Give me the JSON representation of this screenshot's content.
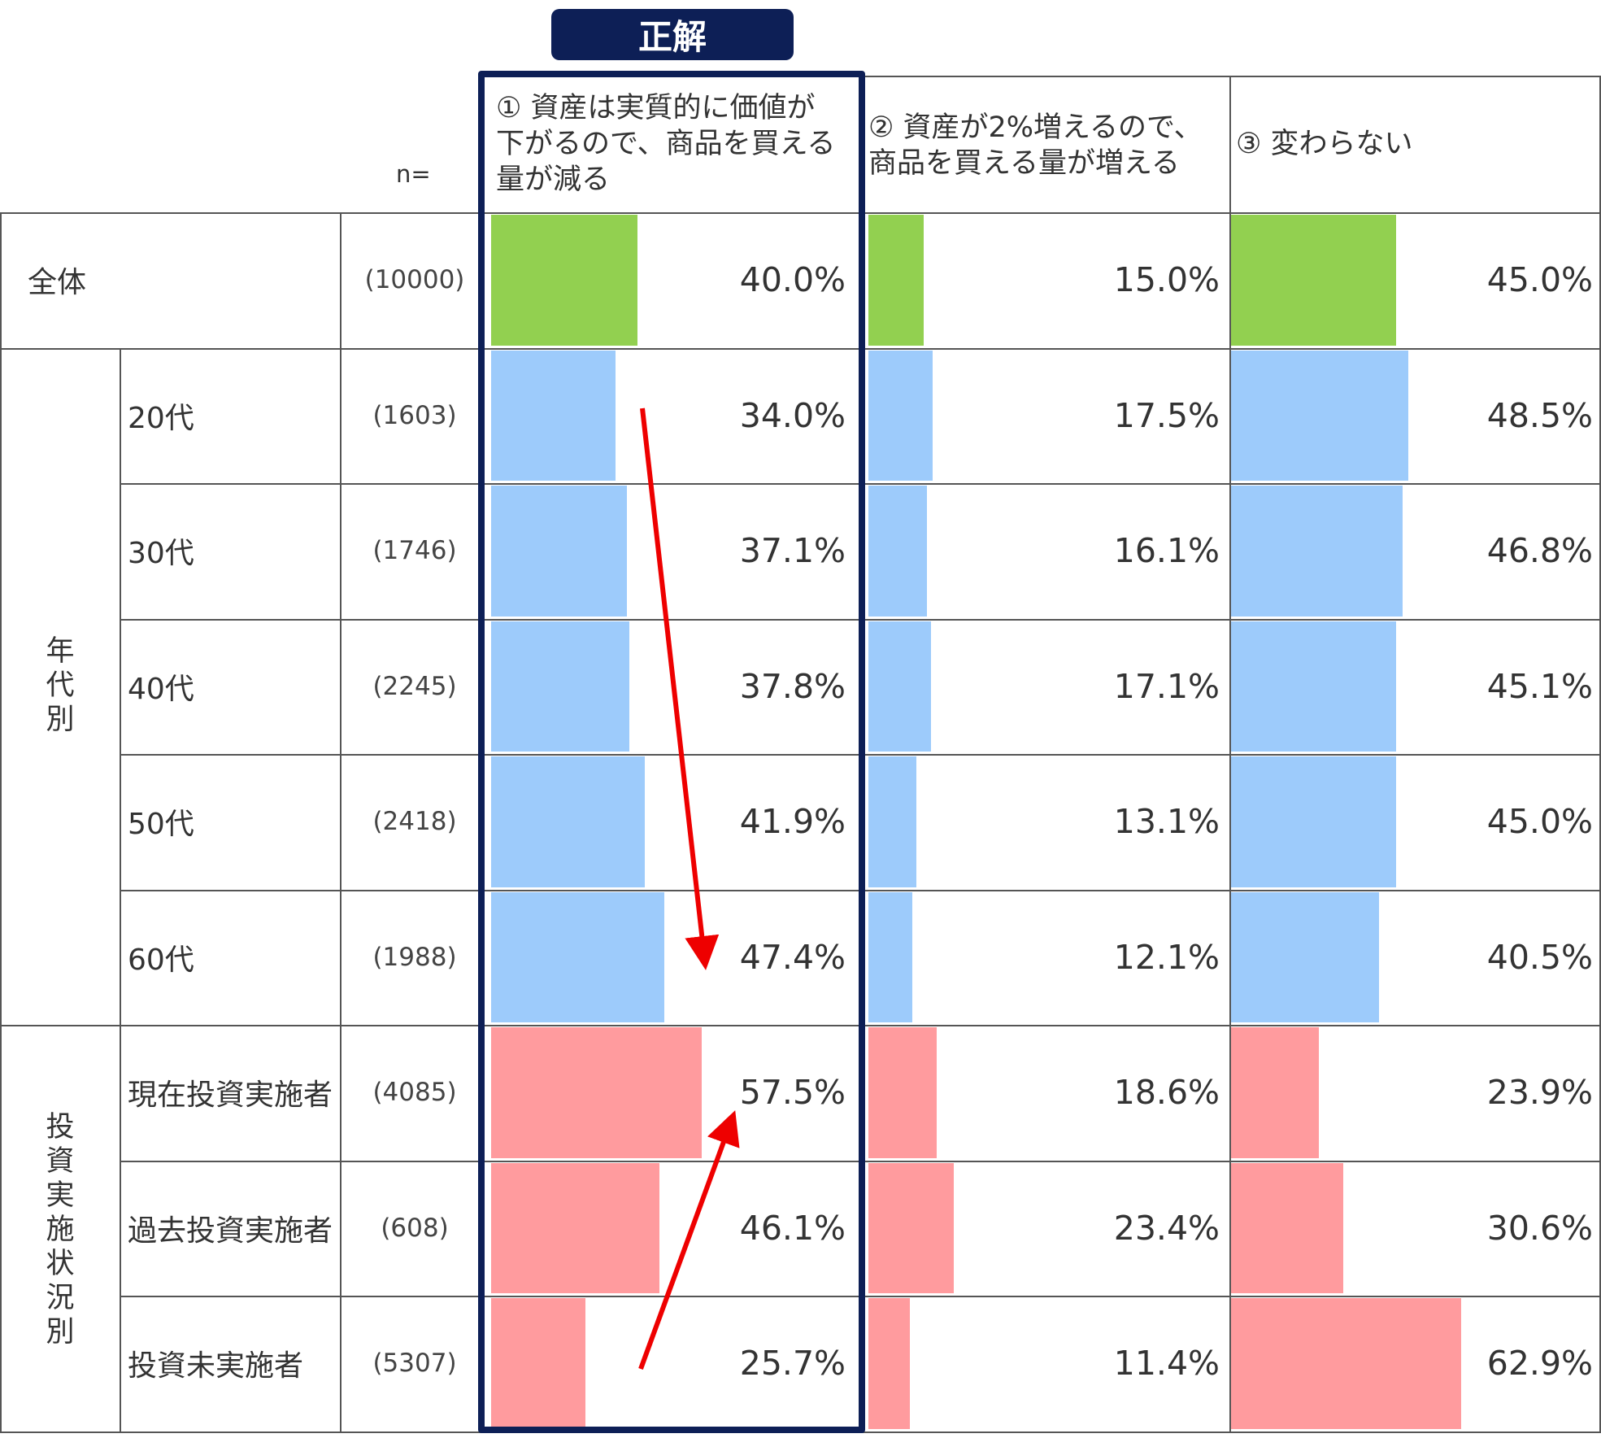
{
  "badge": "正解",
  "n_header": "n=",
  "columns": [
    {
      "label": "① 資産は実質的に価値が\n下がるので、商品を買える\n量が減る"
    },
    {
      "label": "② 資産が2%増えるので、\n商品を買える量が増える"
    },
    {
      "label": "③ 変わらない"
    }
  ],
  "groups": [
    {
      "label": "年\n代\n別"
    },
    {
      "label": "投\n資\n実\n施\n状\n況\n別"
    }
  ],
  "colors": {
    "overall": "#92d050",
    "age": "#9dcbfb",
    "investment": "#ff9b9e",
    "frame": "#0d1f56",
    "arrow": "#ee0000"
  },
  "chart_data": {
    "type": "table",
    "bar_scale_max": 100,
    "rows": [
      {
        "label": "全体",
        "n": "(10000)",
        "group": "overall",
        "values": [
          40.0,
          15.0,
          45.0
        ],
        "labels": [
          "40.0%",
          "15.0%",
          "45.0%"
        ]
      },
      {
        "label": "20代",
        "n": "(1603)",
        "group": "age",
        "values": [
          34.0,
          17.5,
          48.5
        ],
        "labels": [
          "34.0%",
          "17.5%",
          "48.5%"
        ]
      },
      {
        "label": "30代",
        "n": "(1746)",
        "group": "age",
        "values": [
          37.1,
          16.1,
          46.8
        ],
        "labels": [
          "37.1%",
          "16.1%",
          "46.8%"
        ]
      },
      {
        "label": "40代",
        "n": "(2245)",
        "group": "age",
        "values": [
          37.8,
          17.1,
          45.1
        ],
        "labels": [
          "37.8%",
          "17.1%",
          "45.1%"
        ]
      },
      {
        "label": "50代",
        "n": "(2418)",
        "group": "age",
        "values": [
          41.9,
          13.1,
          45.0
        ],
        "labels": [
          "41.9%",
          "13.1%",
          "45.0%"
        ]
      },
      {
        "label": "60代",
        "n": "(1988)",
        "group": "age",
        "values": [
          47.4,
          12.1,
          40.5
        ],
        "labels": [
          "47.4%",
          "12.1%",
          "40.5%"
        ]
      },
      {
        "label": "現在投資実施者",
        "n": "(4085)",
        "group": "investment",
        "values": [
          57.5,
          18.6,
          23.9
        ],
        "labels": [
          "57.5%",
          "18.6%",
          "23.9%"
        ]
      },
      {
        "label": "過去投資実施者",
        "n": "(608)",
        "group": "investment",
        "values": [
          46.1,
          23.4,
          30.6
        ],
        "labels": [
          "46.1%",
          "23.4%",
          "30.6%"
        ]
      },
      {
        "label": "投資未実施者",
        "n": "(5307)",
        "group": "investment",
        "values": [
          25.7,
          11.4,
          62.9
        ],
        "labels": [
          "25.7%",
          "11.4%",
          "62.9%"
        ]
      }
    ]
  }
}
